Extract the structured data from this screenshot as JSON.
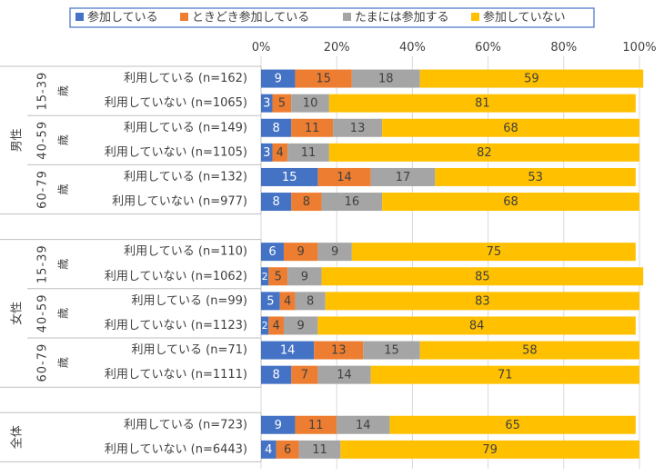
{
  "chart_data": {
    "type": "bar",
    "orientation": "horizontal",
    "stacked": "percent",
    "legend_position": "top",
    "xlim": [
      0,
      100
    ],
    "x_ticks": [
      "0%",
      "20%",
      "40%",
      "60%",
      "80%",
      "100%"
    ],
    "grid": true,
    "series": [
      {
        "name": "参加している",
        "color": "#4472C4"
      },
      {
        "name": "ときどき参加している",
        "color": "#ED7D31"
      },
      {
        "name": "たまには参加する",
        "color": "#A5A5A5"
      },
      {
        "name": "参加していない",
        "color": "#FFC000"
      }
    ],
    "groups": [
      {
        "label": "男性",
        "subgroups": [
          {
            "label": "15-39",
            "suffix": "歳",
            "rows": [
              {
                "label": "利用している (n=162)",
                "values": [
                  9,
                  15,
                  18,
                  59
                ]
              },
              {
                "label": "利用していない (n=1065)",
                "values": [
                  3,
                  5,
                  10,
                  81
                ]
              }
            ]
          },
          {
            "label": "40-59",
            "suffix": "歳",
            "rows": [
              {
                "label": "利用している (n=149)",
                "values": [
                  8,
                  11,
                  13,
                  68
                ]
              },
              {
                "label": "利用していない (n=1105)",
                "values": [
                  3,
                  4,
                  11,
                  82
                ]
              }
            ]
          },
          {
            "label": "60-79",
            "suffix": "歳",
            "rows": [
              {
                "label": "利用している (n=132)",
                "values": [
                  15,
                  14,
                  17,
                  53
                ]
              },
              {
                "label": "利用していない (n=977)",
                "values": [
                  8,
                  8,
                  16,
                  68
                ]
              }
            ]
          }
        ]
      },
      {
        "label": "女性",
        "subgroups": [
          {
            "label": "15-39",
            "suffix": "歳",
            "rows": [
              {
                "label": "利用している (n=110)",
                "values": [
                  6,
                  9,
                  9,
                  75
                ]
              },
              {
                "label": "利用していない (n=1062)",
                "values": [
                  2,
                  5,
                  9,
                  85
                ]
              }
            ]
          },
          {
            "label": "40-59",
            "suffix": "歳",
            "rows": [
              {
                "label": "利用している (n=99)",
                "values": [
                  5,
                  4,
                  8,
                  83
                ]
              },
              {
                "label": "利用していない (n=1123)",
                "values": [
                  2,
                  4,
                  9,
                  84
                ]
              }
            ]
          },
          {
            "label": "60-79",
            "suffix": "歳",
            "rows": [
              {
                "label": "利用している (n=71)",
                "values": [
                  14,
                  13,
                  15,
                  58
                ]
              },
              {
                "label": "利用していない (n=1111)",
                "values": [
                  8,
                  7,
                  14,
                  71
                ]
              }
            ]
          }
        ]
      },
      {
        "label": "全体",
        "subgroups": [
          {
            "label": "",
            "suffix": "",
            "rows": [
              {
                "label": "利用している (n=723)",
                "values": [
                  9,
                  11,
                  14,
                  65
                ]
              },
              {
                "label": "利用していない (n=6443)",
                "values": [
                  4,
                  6,
                  11,
                  79
                ]
              }
            ]
          }
        ]
      }
    ]
  }
}
